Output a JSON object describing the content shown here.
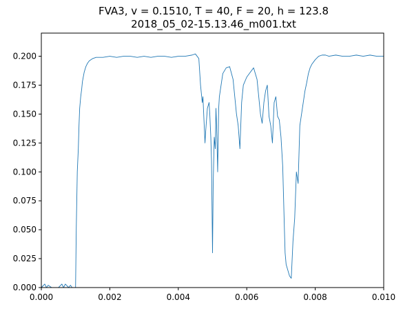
{
  "chart_data": {
    "type": "line",
    "title": "FVA3, v = 0.1510, T = 40, F = 20, h = 123.8",
    "subtitle": "2018_05_02-15.13.46_m001.txt",
    "xlabel": "",
    "ylabel": "",
    "xlim": [
      0.0,
      0.01
    ],
    "ylim": [
      0.0,
      0.22
    ],
    "x_ticks": [
      "0.000",
      "0.002",
      "0.004",
      "0.006",
      "0.008",
      "0.010"
    ],
    "x_tick_values": [
      0.0,
      0.002,
      0.004,
      0.006,
      0.008,
      0.01
    ],
    "y_ticks": [
      "0.000",
      "0.025",
      "0.050",
      "0.075",
      "0.100",
      "0.125",
      "0.150",
      "0.175",
      "0.200"
    ],
    "y_tick_values": [
      0.0,
      0.025,
      0.05,
      0.075,
      0.1,
      0.125,
      0.15,
      0.175,
      0.2
    ],
    "grid": false,
    "series": [
      {
        "color": "#1f77b4",
        "x": [
          0.0,
          0.0001,
          0.00015,
          0.0002,
          0.0003,
          0.0004,
          0.0005,
          0.0006,
          0.00065,
          0.0007,
          0.0008,
          0.00085,
          0.0009,
          0.00095,
          0.001,
          0.00102,
          0.00105,
          0.00108,
          0.0011,
          0.00112,
          0.00115,
          0.00118,
          0.0012,
          0.00125,
          0.0013,
          0.00135,
          0.0014,
          0.0015,
          0.0016,
          0.0018,
          0.002,
          0.0022,
          0.0024,
          0.0026,
          0.0028,
          0.003,
          0.0032,
          0.0034,
          0.0036,
          0.0038,
          0.004,
          0.0042,
          0.0044,
          0.0045,
          0.00455,
          0.0046,
          0.00465,
          0.0047,
          0.00472,
          0.00475,
          0.00478,
          0.0048,
          0.00485,
          0.0049,
          0.00492,
          0.00495,
          0.00497,
          0.005,
          0.00502,
          0.00505,
          0.00508,
          0.0051,
          0.00512,
          0.00515,
          0.00518,
          0.0052,
          0.0053,
          0.0054,
          0.0055,
          0.0056,
          0.00565,
          0.0057,
          0.00575,
          0.0058,
          0.00585,
          0.0059,
          0.006,
          0.0061,
          0.0062,
          0.0063,
          0.00635,
          0.0064,
          0.00645,
          0.0065,
          0.00655,
          0.0066,
          0.00665,
          0.0067,
          0.00675,
          0.0068,
          0.00685,
          0.0069,
          0.00695,
          0.007,
          0.00705,
          0.0071,
          0.00712,
          0.00715,
          0.0072,
          0.00725,
          0.0073,
          0.00735,
          0.0074,
          0.00745,
          0.0075,
          0.00755,
          0.0076,
          0.00765,
          0.0077,
          0.00775,
          0.0078,
          0.00785,
          0.0079,
          0.008,
          0.0081,
          0.0082,
          0.0083,
          0.0084,
          0.0086,
          0.0088,
          0.009,
          0.0092,
          0.0094,
          0.0096,
          0.0098,
          0.01
        ],
        "y": [
          0.0,
          0.003,
          0.0,
          0.002,
          0.0,
          0.0,
          0.0,
          0.003,
          0.0,
          0.003,
          0.0,
          0.002,
          0.0,
          0.0,
          0.0,
          0.05,
          0.1,
          0.12,
          0.14,
          0.155,
          0.165,
          0.172,
          0.178,
          0.186,
          0.191,
          0.194,
          0.196,
          0.198,
          0.199,
          0.199,
          0.2,
          0.199,
          0.2,
          0.2,
          0.199,
          0.2,
          0.199,
          0.2,
          0.2,
          0.199,
          0.2,
          0.2,
          0.201,
          0.202,
          0.2,
          0.198,
          0.175,
          0.16,
          0.165,
          0.145,
          0.125,
          0.135,
          0.155,
          0.16,
          0.15,
          0.13,
          0.11,
          0.03,
          0.09,
          0.13,
          0.12,
          0.155,
          0.14,
          0.1,
          0.155,
          0.165,
          0.185,
          0.19,
          0.191,
          0.18,
          0.165,
          0.15,
          0.14,
          0.12,
          0.16,
          0.175,
          0.182,
          0.186,
          0.19,
          0.18,
          0.165,
          0.15,
          0.142,
          0.16,
          0.17,
          0.175,
          0.148,
          0.14,
          0.125,
          0.16,
          0.165,
          0.148,
          0.145,
          0.13,
          0.105,
          0.05,
          0.03,
          0.02,
          0.015,
          0.01,
          0.008,
          0.04,
          0.06,
          0.1,
          0.09,
          0.14,
          0.15,
          0.16,
          0.17,
          0.177,
          0.185,
          0.19,
          0.193,
          0.197,
          0.2,
          0.201,
          0.201,
          0.2,
          0.201,
          0.2,
          0.2,
          0.201,
          0.2,
          0.201,
          0.2,
          0.2
        ]
      }
    ]
  }
}
